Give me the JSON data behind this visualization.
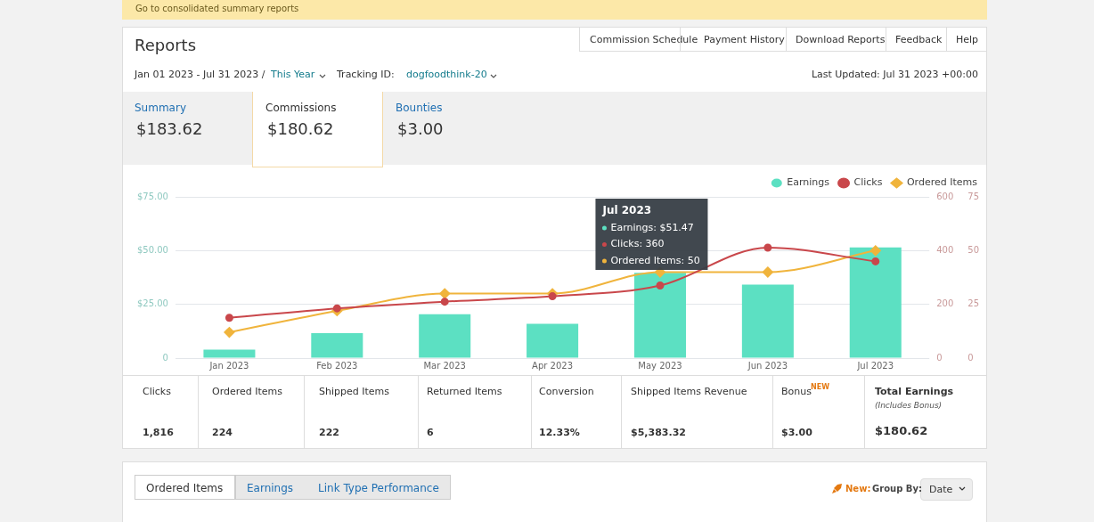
{
  "chart_data": [
    {
      "type": "bar",
      "categories": [
        "Jan 2023",
        "Feb 2023",
        "Mar 2023",
        "Apr 2023",
        "May 2023",
        "Jun 2023",
        "Jul 2023"
      ],
      "series": [
        {
          "name": "Earnings",
          "type": "bar",
          "color": "#5ce0c2",
          "values": [
            3.9,
            11.6,
            20.4,
            16,
            39.7,
            34.2,
            51.47
          ]
        },
        {
          "name": "Clicks",
          "type": "line",
          "axis": "y2",
          "marker": "circle",
          "color": "#c9474b",
          "values": [
            150,
            185,
            210,
            230,
            270,
            411,
            360
          ]
        },
        {
          "name": "Ordered Items",
          "type": "line",
          "axis": "y3",
          "marker": "diamond",
          "color": "#f0b43c",
          "values": [
            12,
            22,
            30,
            30,
            40,
            40,
            50
          ]
        }
      ],
      "ylim": [
        0,
        75
      ],
      "yticks": [
        {
          "value": 0,
          "label": "0"
        },
        {
          "value": 25,
          "label": "$25.00"
        },
        {
          "value": 50,
          "label": "$50.00"
        },
        {
          "value": 75,
          "label": "$75.00"
        }
      ],
      "y2lim": [
        0,
        600
      ],
      "y2ticks": [
        0,
        200,
        400,
        600
      ],
      "y3lim": [
        0,
        75
      ],
      "y3ticks": [
        0,
        25,
        50,
        75
      ],
      "grid": "y",
      "legend": "top right",
      "annotations": [
        "Jul 2023",
        "Earnings: $51.47",
        "Clicks: 360",
        "Ordered Items: 50"
      ]
    },
    {
      "type": "other",
      "title": "Reports",
      "annotations": [
        "Go to consolidated summary reports",
        "Commission Schedule",
        "Payment History",
        "Download Reports",
        "Feedback",
        "Help",
        "Jan 01 2023 - Jul 31 2023 /",
        "This Year",
        "Tracking ID:",
        "dogfoodthink-20",
        "Last Updated: Jul 31 2023 +00:00",
        "Summary",
        "$183.62",
        "Commissions",
        "$180.62",
        "Bounties",
        "$3.00",
        "Clicks",
        "1,816",
        "Ordered Items",
        "224",
        "Shipped Items",
        "222",
        "Returned Items",
        "6",
        "Conversion",
        "12.33%",
        "Shipped Items Revenue",
        "$5,383.32",
        "Bonus",
        "NEW",
        "$3.00",
        "Total Earnings",
        "(Includes Bonus)",
        "$180.62",
        "Ordered Items",
        "Earnings",
        "Link Type Performance",
        "New:",
        "Group By:",
        "Date"
      ]
    }
  ]
}
